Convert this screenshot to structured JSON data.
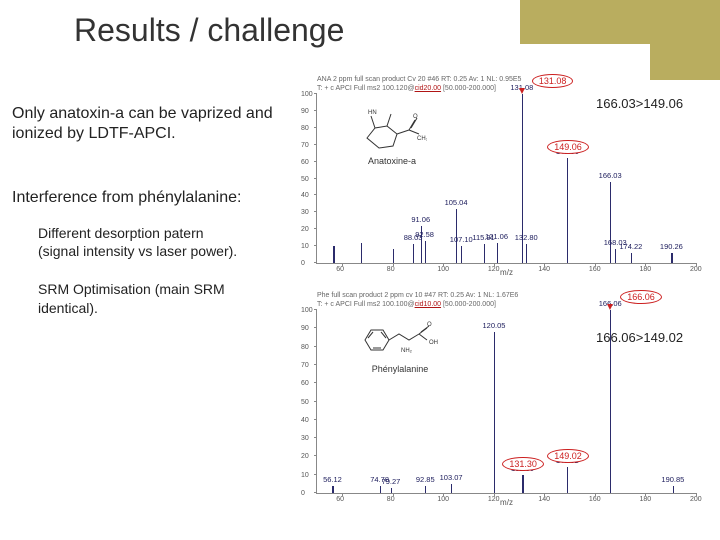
{
  "slide": {
    "title": "Results / challenge",
    "title_fontsize": 32,
    "accent_color": "#b9ad5f",
    "bg": "#ffffff",
    "text_color": "#333333"
  },
  "text": {
    "p1": "Only anatoxin-a can be vaprized and ionized by LDTF-APCI.",
    "p2": "Interference from phénylalanine:",
    "p3": "Different desorption patern (signal intensity vs laser power).",
    "p4": "SRM Optimisation (main SRM identical)."
  },
  "charts": {
    "common": {
      "ytick_step": 10,
      "ylim": [
        0,
        100
      ],
      "xlim": [
        50,
        200
      ],
      "xtick_step": 20,
      "xlabel": "m/z",
      "bar_color": "#2b2b6b",
      "grid_color": "#e0e0e0",
      "label_fontsize": 7.5,
      "axis_fontsize": 7,
      "highlight_border": "#cc2020"
    },
    "top": {
      "header_line1": "ANA 2 ppm full scan product Cv 20 #46  RT: 0.25  Av: 1  NL: 0.95E5",
      "header_line2_pre": "T: + c APCI Full ms2 100.120@",
      "header_line2_mid": "cid20.00",
      "header_line2_post": " [50.000-200.000]",
      "srm_label": "166.03>149.06",
      "molecule_label": "Anatoxine-a",
      "highlight_mz": 131.08,
      "peaks": [
        {
          "mz": 56.47,
          "rel": 10,
          "label": ""
        },
        {
          "mz": 67.5,
          "rel": 12,
          "label": ""
        },
        {
          "mz": 80.0,
          "rel": 8,
          "label": ""
        },
        {
          "mz": 88.03,
          "rel": 11,
          "label": "88.03"
        },
        {
          "mz": 91.06,
          "rel": 22,
          "label": "91.06"
        },
        {
          "mz": 92.58,
          "rel": 13,
          "label": "92.58"
        },
        {
          "mz": 105.04,
          "rel": 32,
          "label": "105.04"
        },
        {
          "mz": 107.1,
          "rel": 10,
          "label": "107.10"
        },
        {
          "mz": 115.91,
          "rel": 11,
          "label": "115.91"
        },
        {
          "mz": 121.06,
          "rel": 12,
          "label": "121.06"
        },
        {
          "mz": 131.08,
          "rel": 100,
          "label": "131.08"
        },
        {
          "mz": 132.8,
          "rel": 11,
          "label": "132.80"
        },
        {
          "mz": 149.06,
          "rel": 62,
          "label": "149.06"
        },
        {
          "mz": 166.03,
          "rel": 48,
          "label": "166.03"
        },
        {
          "mz": 168.03,
          "rel": 8,
          "label": "168.03"
        },
        {
          "mz": 174.22,
          "rel": 6,
          "label": "174.22"
        },
        {
          "mz": 190.26,
          "rel": 6,
          "label": "190.26"
        }
      ]
    },
    "bottom": {
      "header_line1": "Phe full scan product 2 ppm cv 10 #47  RT: 0.25  Av: 1  NL: 1.67E6",
      "header_line2_pre": "T: + c APCI Full ms2 100.100@",
      "header_line2_mid": "cid10.00",
      "header_line2_post": " [50.000-200.000]",
      "srm_label": "166.06>149.02",
      "molecule_label": "Phénylalanine",
      "highlight_mz": 166.06,
      "peaks": [
        {
          "mz": 56.12,
          "rel": 4,
          "label": "56.12"
        },
        {
          "mz": 74.78,
          "rel": 4,
          "label": "74.78"
        },
        {
          "mz": 79.27,
          "rel": 3,
          "label": "79.27"
        },
        {
          "mz": 92.85,
          "rel": 4,
          "label": "92.85"
        },
        {
          "mz": 103.07,
          "rel": 5,
          "label": "103.07"
        },
        {
          "mz": 120.05,
          "rel": 88,
          "label": "120.05"
        },
        {
          "mz": 131.3,
          "rel": 10,
          "label": "131.30"
        },
        {
          "mz": 149.02,
          "rel": 14,
          "label": "149.02"
        },
        {
          "mz": 166.06,
          "rel": 100,
          "label": "166.06"
        },
        {
          "mz": 190.85,
          "rel": 4,
          "label": "190.85"
        }
      ]
    }
  }
}
